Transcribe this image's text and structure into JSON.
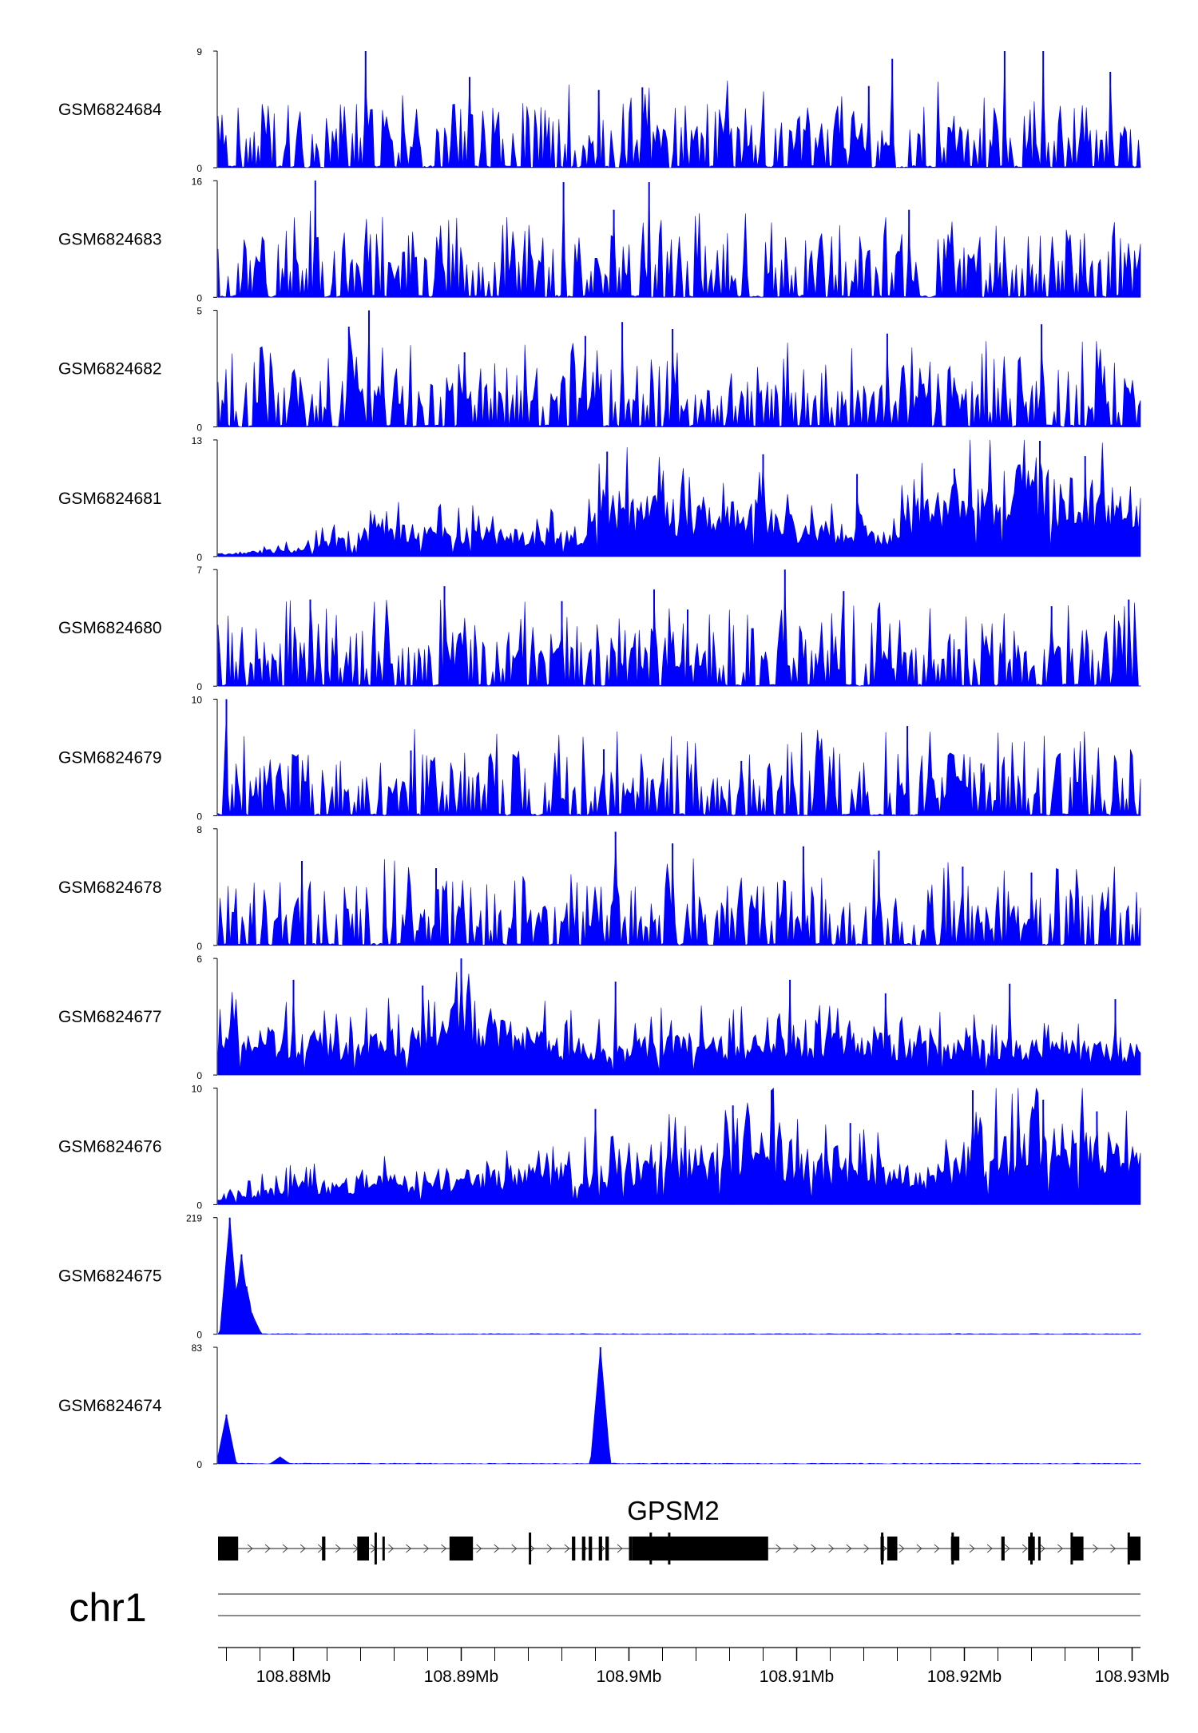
{
  "chart_data": {
    "type": "area",
    "chromosome": "chr1",
    "xlim": [
      108.8755,
      108.9305
    ],
    "x_ticks": [
      {
        "value": 108.88,
        "label": "108.88Mb"
      },
      {
        "value": 108.89,
        "label": "108.89Mb"
      },
      {
        "value": 108.9,
        "label": "108.9Mb"
      },
      {
        "value": 108.91,
        "label": "108.91Mb"
      },
      {
        "value": 108.92,
        "label": "108.92Mb"
      },
      {
        "value": 108.93,
        "label": "108.93Mb"
      }
    ],
    "minor_tick_step": 0.002,
    "fill_color": "#0000FF",
    "tracks": [
      {
        "name": "GSM6824684",
        "ylim": [
          0,
          9
        ],
        "ymax_label": "9",
        "ymin_label": "0",
        "profile": "sparse",
        "peaks": [
          [
            108.8843,
            9.1
          ],
          [
            108.8905,
            7.0
          ],
          [
            108.8982,
            6.0
          ],
          [
            108.9008,
            6.2
          ],
          [
            108.9143,
            6.3
          ],
          [
            108.9157,
            8.4
          ],
          [
            108.9224,
            9.1
          ],
          [
            108.9247,
            9.1
          ],
          [
            108.9287,
            7.4
          ]
        ]
      },
      {
        "name": "GSM6824683",
        "ylim": [
          0,
          16
        ],
        "ymax_label": "16",
        "ymin_label": "0",
        "profile": "sparse",
        "peaks": [
          [
            108.8813,
            16.0
          ],
          [
            108.8961,
            15.8
          ],
          [
            108.8991,
            12.0
          ],
          [
            108.9012,
            15.8
          ],
          [
            108.9167,
            12.0
          ]
        ]
      },
      {
        "name": "GSM6824682",
        "ylim": [
          0,
          5
        ],
        "ymax_label": "5",
        "ymin_label": "0",
        "profile": "sparse",
        "peaks": [
          [
            108.8845,
            5.0
          ],
          [
            108.8833,
            4.3
          ],
          [
            108.8902,
            3.2
          ],
          [
            108.8974,
            3.9
          ],
          [
            108.8996,
            4.5
          ],
          [
            108.9026,
            4.2
          ],
          [
            108.9154,
            4.0
          ],
          [
            108.9246,
            4.4
          ]
        ]
      },
      {
        "name": "GSM6824681",
        "ylim": [
          0,
          13
        ],
        "ymax_label": "13",
        "ymin_label": "0",
        "profile": "dense",
        "envelope": [
          [
            108.8755,
            0.3
          ],
          [
            108.88,
            1.0
          ],
          [
            108.885,
            3.5
          ],
          [
            108.895,
            3.0
          ],
          [
            108.8975,
            3.5
          ],
          [
            108.8985,
            7.5
          ],
          [
            108.9025,
            6.0
          ],
          [
            108.905,
            5.0
          ],
          [
            108.9075,
            6.5
          ],
          [
            108.91,
            4.0
          ],
          [
            108.915,
            3.0
          ],
          [
            108.918,
            7.0
          ],
          [
            108.923,
            9.5
          ],
          [
            108.928,
            8.0
          ],
          [
            108.9305,
            6.0
          ]
        ],
        "peaks": [
          [
            108.8987,
            11.7
          ],
          [
            108.908,
            11.4
          ],
          [
            108.9136,
            9.2
          ],
          [
            108.9194,
            9.8
          ],
          [
            108.9245,
            12.9
          ],
          [
            108.9272,
            11.2
          ]
        ]
      },
      {
        "name": "GSM6824680",
        "ylim": [
          0,
          7
        ],
        "ymax_label": "7",
        "ymin_label": "0",
        "profile": "sparse",
        "peaks": [
          [
            108.881,
            5.2
          ],
          [
            108.889,
            6.0
          ],
          [
            108.896,
            5.1
          ],
          [
            108.9015,
            5.8
          ],
          [
            108.9035,
            4.6
          ],
          [
            108.9093,
            7.0
          ],
          [
            108.9128,
            5.7
          ],
          [
            108.9252,
            4.8
          ],
          [
            108.9298,
            5.2
          ]
        ]
      },
      {
        "name": "GSM6824679",
        "ylim": [
          0,
          10
        ],
        "ymax_label": "10",
        "ymin_label": "0",
        "profile": "sparse",
        "peaks": [
          [
            108.876,
            10.0
          ],
          [
            108.887,
            5.6
          ],
          [
            108.8985,
            5.7
          ],
          [
            108.9067,
            4.7
          ],
          [
            108.9113,
            6.4
          ],
          [
            108.9166,
            7.7
          ],
          [
            108.921,
            4.5
          ]
        ]
      },
      {
        "name": "GSM6824678",
        "ylim": [
          0,
          8
        ],
        "ymax_label": "8",
        "ymin_label": "0",
        "profile": "sparse",
        "peaks": [
          [
            108.8805,
            5.8
          ],
          [
            108.8885,
            5.3
          ],
          [
            108.8992,
            7.8
          ],
          [
            108.9026,
            7.0
          ],
          [
            108.9104,
            6.8
          ],
          [
            108.9149,
            6.5
          ],
          [
            108.9199,
            5.4
          ],
          [
            108.924,
            5.0
          ]
        ]
      },
      {
        "name": "GSM6824677",
        "ylim": [
          0,
          6
        ],
        "ymax_label": "6",
        "ymin_label": "0",
        "profile": "dense",
        "envelope": [
          [
            108.8755,
            2.5
          ],
          [
            108.884,
            2.0
          ],
          [
            108.888,
            2.5
          ],
          [
            108.8905,
            4.0
          ],
          [
            108.893,
            2.5
          ],
          [
            108.899,
            1.5
          ],
          [
            108.902,
            2.0
          ],
          [
            108.91,
            2.0
          ],
          [
            108.918,
            2.0
          ],
          [
            108.9305,
            1.5
          ]
        ],
        "peaks": [
          [
            108.88,
            4.9
          ],
          [
            108.8877,
            4.6
          ],
          [
            108.89,
            6.0
          ],
          [
            108.8992,
            4.8
          ],
          [
            108.9096,
            4.9
          ],
          [
            108.9153,
            4.2
          ],
          [
            108.9227,
            4.7
          ],
          [
            108.929,
            3.9
          ]
        ]
      },
      {
        "name": "GSM6824676",
        "ylim": [
          0,
          10
        ],
        "ymax_label": "10",
        "ymin_label": "0",
        "profile": "dense",
        "envelope": [
          [
            108.8755,
            0.8
          ],
          [
            108.88,
            2.0
          ],
          [
            108.89,
            3.0
          ],
          [
            108.898,
            3.5
          ],
          [
            108.9,
            4.0
          ],
          [
            108.905,
            5.0
          ],
          [
            108.908,
            6.0
          ],
          [
            108.912,
            4.0
          ],
          [
            108.918,
            3.0
          ],
          [
            108.92,
            5.0
          ],
          [
            108.925,
            7.0
          ],
          [
            108.9305,
            5.0
          ]
        ],
        "peaks": [
          [
            108.898,
            8.2
          ],
          [
            108.9062,
            8.5
          ],
          [
            108.9085,
            9.8
          ],
          [
            108.9132,
            7.0
          ],
          [
            108.9205,
            9.8
          ],
          [
            108.9247,
            9.0
          ],
          [
            108.9279,
            8.0
          ]
        ]
      },
      {
        "name": "GSM6824675",
        "ylim": [
          0,
          219
        ],
        "ymax_label": "219",
        "ymin_label": "0",
        "profile": "single",
        "peaks": [
          [
            108.8762,
            219
          ],
          [
            108.8769,
            150
          ],
          [
            108.8772,
            90
          ],
          [
            108.8775,
            40
          ]
        ]
      },
      {
        "name": "GSM6824674",
        "ylim": [
          0,
          83
        ],
        "ymax_label": "83",
        "ymin_label": "0",
        "profile": "single",
        "peaks": [
          [
            108.876,
            35
          ],
          [
            108.8792,
            5
          ],
          [
            108.8983,
            83
          ]
        ]
      }
    ],
    "gene": {
      "name": "GPSM2",
      "start": 108.8755,
      "end": 108.9305,
      "strand": "+",
      "exons": [
        [
          108.8755,
          108.8767
        ],
        [
          108.8817,
          108.8819
        ],
        [
          108.8838,
          108.8845
        ],
        [
          108.8853,
          108.8854
        ],
        [
          108.8893,
          108.8907
        ],
        [
          108.8966,
          108.8968
        ],
        [
          108.8972,
          108.8974
        ],
        [
          108.8976,
          108.8978
        ],
        [
          108.8982,
          108.8984
        ],
        [
          108.8986,
          108.8988
        ],
        [
          108.9,
          108.9002
        ],
        [
          108.9002,
          108.9083
        ],
        [
          108.915,
          108.9152
        ],
        [
          108.9154,
          108.916
        ],
        [
          108.9192,
          108.9195
        ],
        [
          108.9195,
          108.9197
        ],
        [
          108.9222,
          108.9224
        ],
        [
          108.9238,
          108.9242
        ],
        [
          108.9244,
          108.9245
        ],
        [
          108.9264,
          108.9271
        ],
        [
          108.9298,
          108.9305
        ]
      ],
      "thin_marks": [
        108.8849,
        108.8941,
        108.9013,
        108.9024,
        108.9151,
        108.9193,
        108.924,
        108.9264,
        108.9298
      ]
    }
  }
}
